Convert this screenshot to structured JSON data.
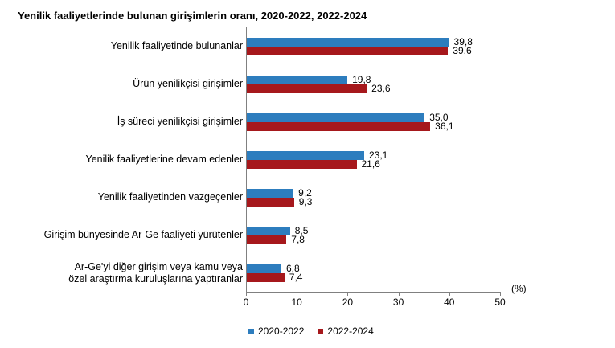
{
  "chart_data": {
    "type": "bar",
    "orientation": "horizontal",
    "title": "Yenilik faaliyetlerinde bulunan girişimlerin oranı, 2020-2022, 2022-2024",
    "categories": [
      "Yenilik faaliyetinde bulunanlar",
      "Ürün yenilikçisi girişimler",
      "İş süreci yenilikçisi girişimler",
      "Yenilik faaliyetlerine devam edenler",
      "Yenilik faaliyetinden vazgeçenler",
      "Girişim bünyesinde Ar-Ge faaliyeti yürütenler",
      "Ar-Ge'yi diğer girişim veya kamu veya\nözel araştırma kuruluşlarına yaptıranlar"
    ],
    "series": [
      {
        "name": "2020-2022",
        "color": "#2D7DBE",
        "values": [
          39.8,
          19.8,
          35.0,
          23.1,
          9.2,
          8.5,
          6.8
        ],
        "value_labels": [
          "39,8",
          "19,8",
          "35,0",
          "23,1",
          "9,2",
          "8,5",
          "6,8"
        ]
      },
      {
        "name": "2022-2024",
        "color": "#A6181C",
        "values": [
          39.6,
          23.6,
          36.1,
          21.6,
          9.3,
          7.8,
          7.4
        ],
        "value_labels": [
          "39,6",
          "23,6",
          "36,1",
          "21,6",
          "9,3",
          "7,8",
          "7,4"
        ]
      }
    ],
    "xlim": [
      0,
      50
    ],
    "xticks": [
      "0",
      "10",
      "20",
      "30",
      "40",
      "50"
    ],
    "xlabel": "(%)",
    "grid": false,
    "legend_position": "bottom",
    "axis_color": "#808080",
    "text_color": "#000000"
  },
  "legend": [
    {
      "label": "2020-2022",
      "color": "#2D7DBE"
    },
    {
      "label": "2022-2024",
      "color": "#A6181C"
    }
  ]
}
